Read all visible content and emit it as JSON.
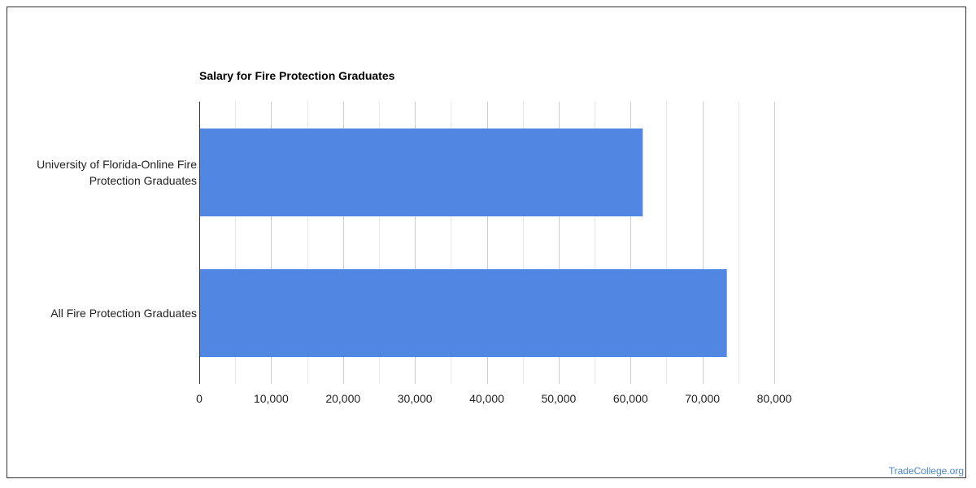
{
  "colors": {
    "bar": "#5286e3",
    "gridline": "#cccccc",
    "minor_gridline": "#e8e8e8",
    "axis_line": "#333333",
    "text": "#222222",
    "watermark": "#4a86c8"
  },
  "watermark": "TradeCollege.org",
  "chart_data": {
    "type": "bar",
    "orientation": "horizontal",
    "title": "Salary for Fire Protection Graduates",
    "xlabel": "",
    "ylabel": "",
    "categories": [
      [
        "University of Florida-Online Fire",
        "Protection Graduates"
      ],
      [
        "All Fire Protection Graduates"
      ]
    ],
    "values": [
      61700,
      73400
    ],
    "xlim": [
      0,
      80000
    ],
    "major_ticks": [
      0,
      10000,
      20000,
      30000,
      40000,
      50000,
      60000,
      70000,
      80000
    ],
    "tick_labels": [
      "0",
      "10,000",
      "20,000",
      "30,000",
      "40,000",
      "50,000",
      "60,000",
      "70,000",
      "80,000"
    ],
    "minor_ticks": [
      5000,
      15000,
      25000,
      35000,
      45000,
      55000,
      65000,
      75000
    ],
    "grid": true,
    "legend": "none"
  }
}
